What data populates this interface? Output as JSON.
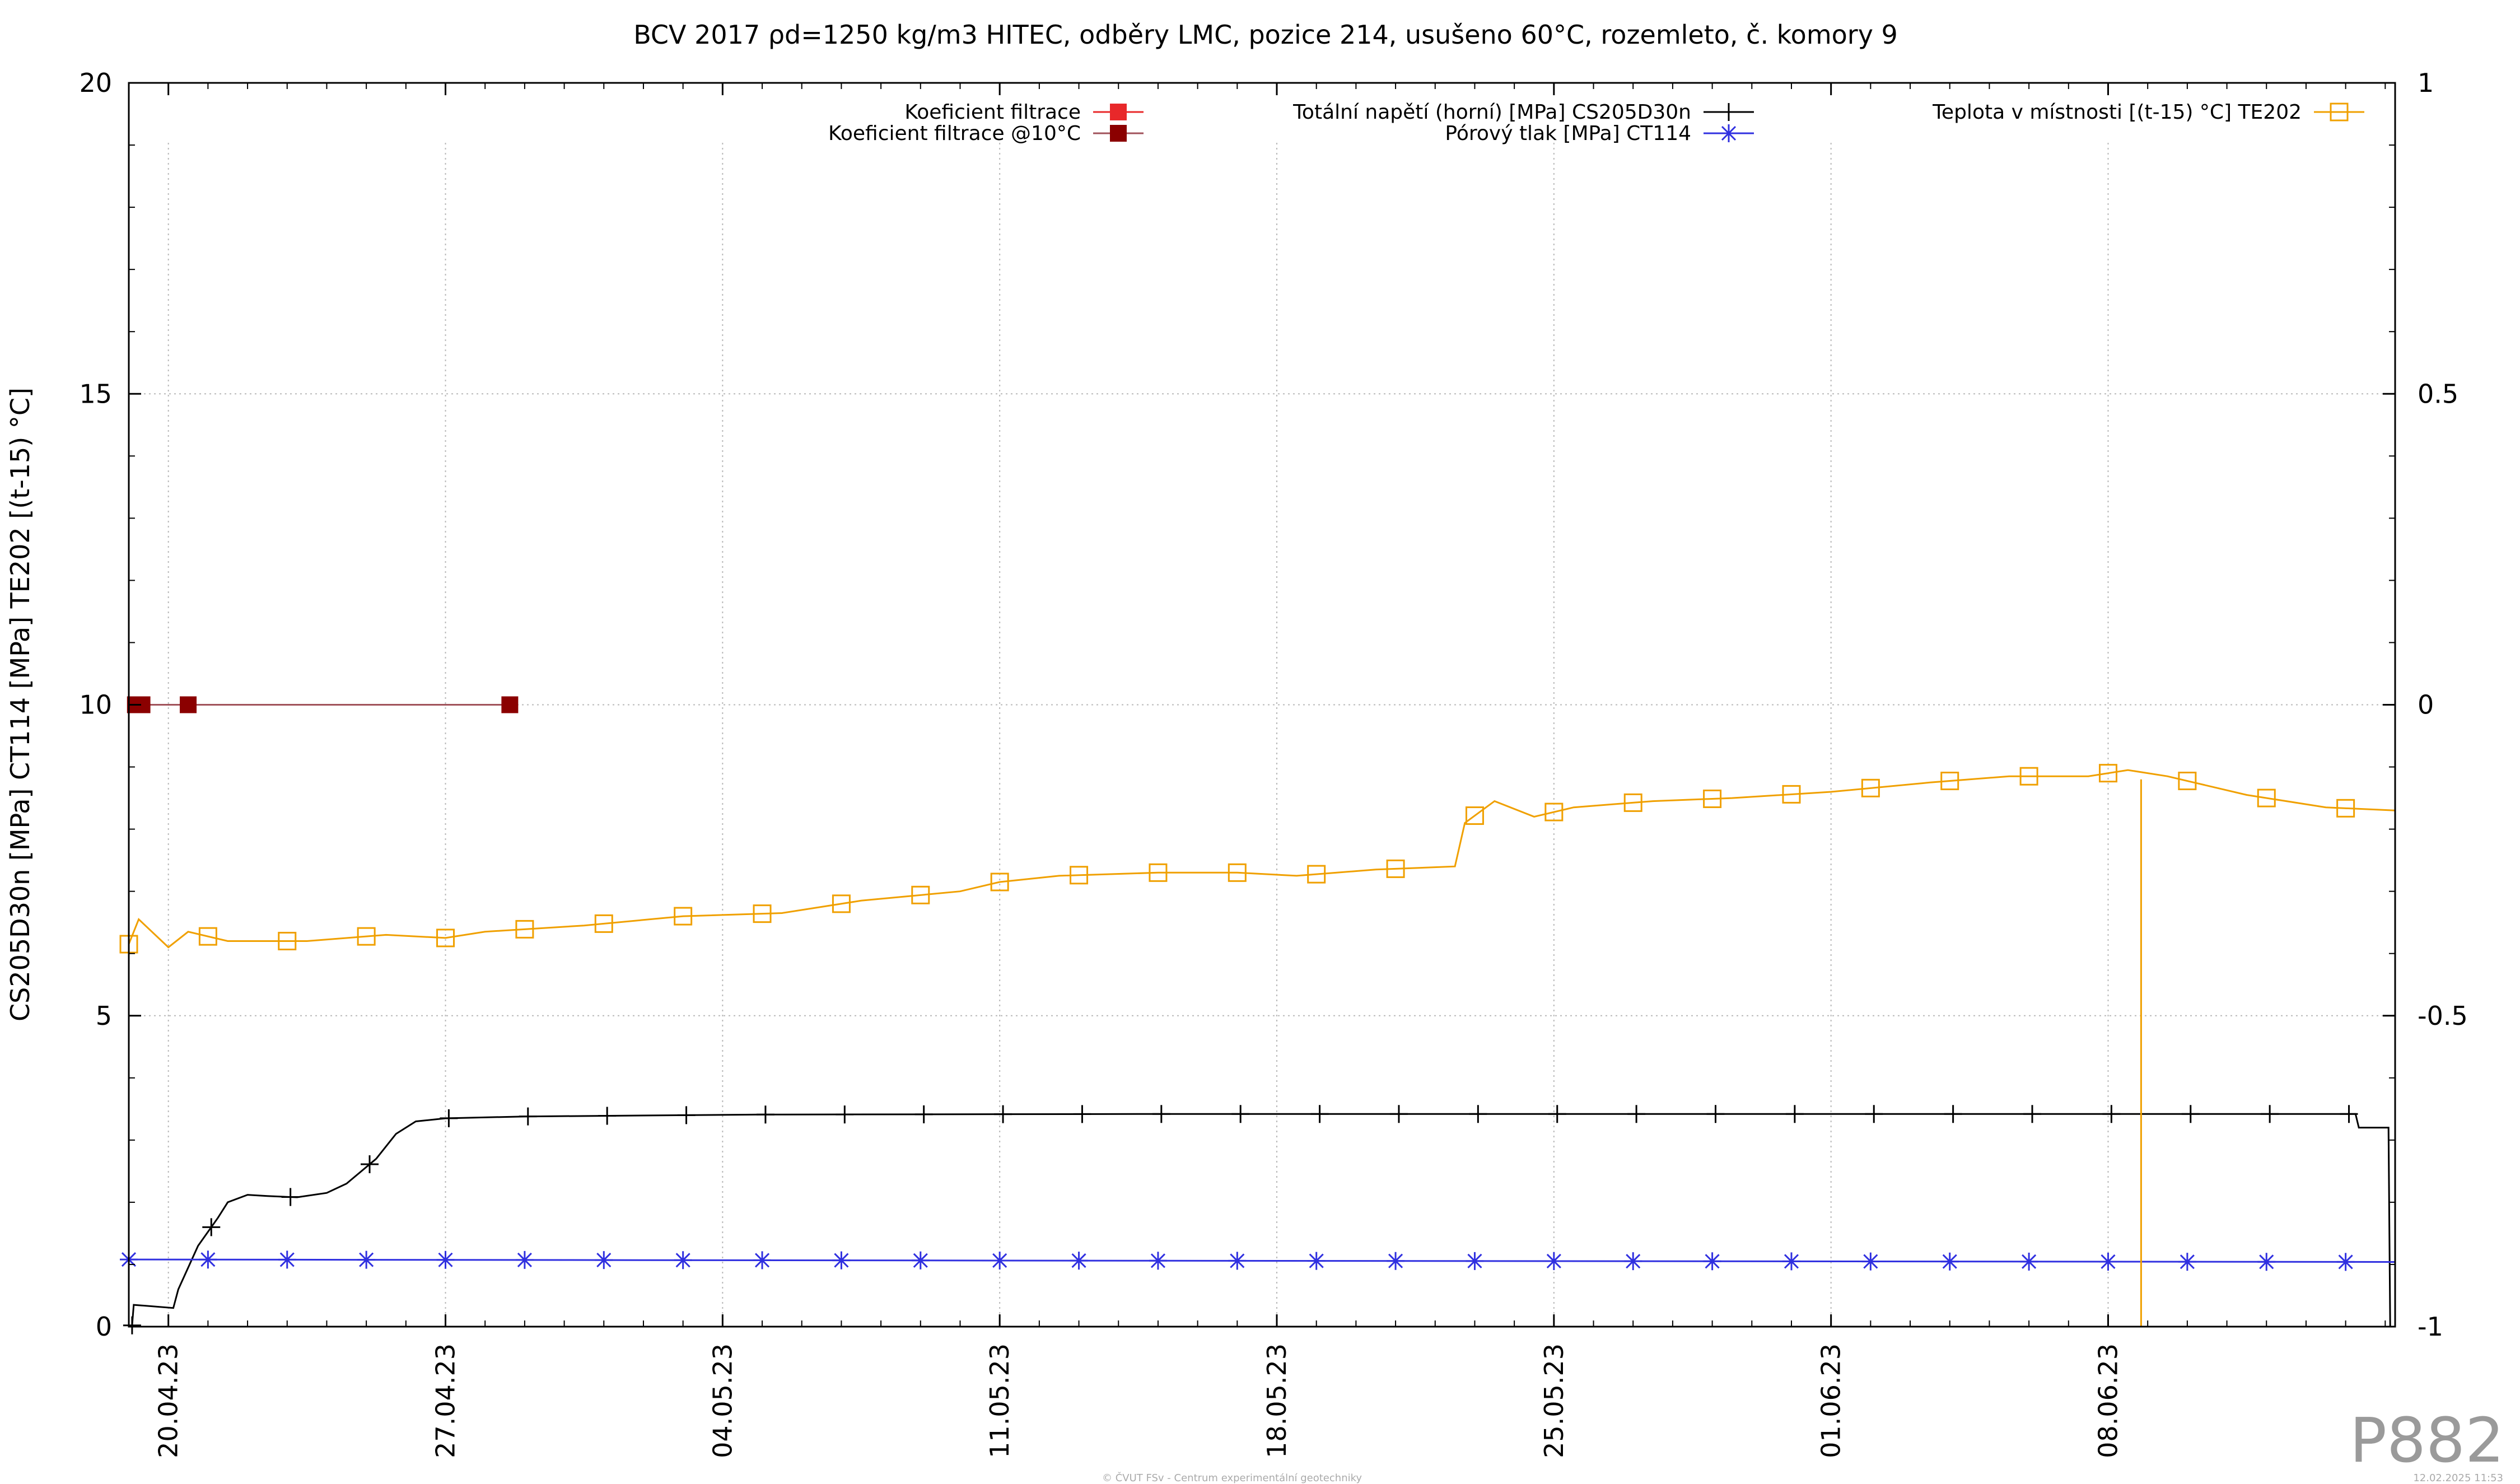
{
  "chart_data": {
    "type": "line",
    "title": "BCV 2017 ρd=1250 kg/m3 HITEC, odběry LMC, pozice 214, usušeno 60°C, rozemleto, č. komory 9",
    "ylabel": "CS205D30n [MPa] CT114 [MPa] TE202 [(t-15) °C]",
    "y2label": "",
    "ylim": [
      0,
      20
    ],
    "y2lim": [
      -1,
      1
    ],
    "y_ticks": [
      0,
      5,
      10,
      15,
      20
    ],
    "y_tick_labels": [
      "0",
      "5",
      "10",
      "15",
      "20"
    ],
    "y2_ticks": [
      -1,
      -0.5,
      0,
      0.5,
      1
    ],
    "y2_tick_labels": [
      "-1",
      "-0.5",
      "0",
      "0.5",
      "1"
    ],
    "x_axis": "date",
    "xlim": [
      "2023-04-19T00:00",
      "2023-06-15T06:00"
    ],
    "x_ticks": [
      "2023-04-20",
      "2023-04-27",
      "2023-05-04",
      "2023-05-11",
      "2023-05-18",
      "2023-05-25",
      "2023-06-01",
      "2023-06-08"
    ],
    "x_tick_labels": [
      "20.04.23",
      "27.04.23",
      "04.05.23",
      "11.05.23",
      "18.05.23",
      "25.05.23",
      "01.06.23",
      "08.06.23"
    ],
    "grid": true,
    "legend_placement": "top",
    "series": [
      {
        "name": "Koeficient filtrace",
        "color": "#e8282a",
        "marker": "filled-square",
        "axis": "y",
        "points": []
      },
      {
        "name": "Koeficient filtrace @10°C",
        "color": "#8b0000",
        "marker": "filled-square",
        "line_color": "#a0525a",
        "axis": "y",
        "points": [
          [
            "2023-04-19T04:00",
            10
          ],
          [
            "2023-04-19T08:00",
            10
          ],
          [
            "2023-04-20T12:00",
            10
          ],
          [
            "2023-04-28T15:00",
            10
          ]
        ]
      },
      {
        "name": "Totální napětí (horní) [MPa] CS205D30n",
        "color": "#000000",
        "marker": "plus",
        "axis": "y",
        "points": [
          [
            "2023-04-19T02:00",
            0.02
          ],
          [
            "2023-04-19T03:00",
            0.35
          ],
          [
            "2023-04-20T03:00",
            0.3
          ],
          [
            "2023-04-20T06:00",
            0.6
          ],
          [
            "2023-04-20T18:00",
            1.3
          ],
          [
            "2023-04-21T06:00",
            1.75
          ],
          [
            "2023-04-21T12:00",
            2.0
          ],
          [
            "2023-04-22T00:00",
            2.12
          ],
          [
            "2023-04-22T12:00",
            2.1
          ],
          [
            "2023-04-23T06:00",
            2.08
          ],
          [
            "2023-04-24T00:00",
            2.15
          ],
          [
            "2023-04-24T12:00",
            2.3
          ],
          [
            "2023-04-25T06:00",
            2.7
          ],
          [
            "2023-04-25T18:00",
            3.1
          ],
          [
            "2023-04-26T06:00",
            3.3
          ],
          [
            "2023-04-27T00:00",
            3.35
          ],
          [
            "2023-04-29T00:00",
            3.38
          ],
          [
            "2023-05-05T00:00",
            3.41
          ],
          [
            "2023-05-15T00:00",
            3.42
          ],
          [
            "2023-05-25T00:00",
            3.42
          ],
          [
            "2023-06-05T00:00",
            3.42
          ],
          [
            "2023-06-14T06:00",
            3.42
          ],
          [
            "2023-06-14T08:00",
            3.2
          ],
          [
            "2023-06-15T02:00",
            3.2
          ],
          [
            "2023-06-15T03:00",
            0.0
          ]
        ]
      },
      {
        "name": "Pórový tlak [MPa] CT114",
        "color": "#3030e0",
        "marker": "star",
        "axis": "y",
        "points": [
          [
            "2023-04-19T00:00",
            1.08
          ],
          [
            "2023-05-15T00:00",
            1.06
          ],
          [
            "2023-06-15T06:00",
            1.04
          ]
        ]
      },
      {
        "name": "Teplota v místnosti [(t-15) °C] TE202",
        "color": "#f0a000",
        "marker": "open-square",
        "axis": "y",
        "points": [
          [
            "2023-04-19T00:00",
            6.15
          ],
          [
            "2023-04-19T06:00",
            6.55
          ],
          [
            "2023-04-20T00:00",
            6.1
          ],
          [
            "2023-04-20T12:00",
            6.35
          ],
          [
            "2023-04-21T12:00",
            6.2
          ],
          [
            "2023-04-23T12:00",
            6.2
          ],
          [
            "2023-04-25T12:00",
            6.3
          ],
          [
            "2023-04-27T00:00",
            6.25
          ],
          [
            "2023-04-28T00:00",
            6.35
          ],
          [
            "2023-04-30T12:00",
            6.45
          ],
          [
            "2023-05-03T00:00",
            6.6
          ],
          [
            "2023-05-05T12:00",
            6.65
          ],
          [
            "2023-05-07T12:00",
            6.85
          ],
          [
            "2023-05-10T00:00",
            7.0
          ],
          [
            "2023-05-11T00:00",
            7.15
          ],
          [
            "2023-05-12T12:00",
            7.25
          ],
          [
            "2023-05-15T00:00",
            7.3
          ],
          [
            "2023-05-17T00:00",
            7.3
          ],
          [
            "2023-05-18T12:00",
            7.25
          ],
          [
            "2023-05-20T12:00",
            7.35
          ],
          [
            "2023-05-22T12:00",
            7.4
          ],
          [
            "2023-05-22T18:00",
            8.1
          ],
          [
            "2023-05-23T12:00",
            8.45
          ],
          [
            "2023-05-24T12:00",
            8.2
          ],
          [
            "2023-05-25T12:00",
            8.35
          ],
          [
            "2023-05-27T12:00",
            8.45
          ],
          [
            "2023-05-29T12:00",
            8.5
          ],
          [
            "2023-06-01T00:00",
            8.6
          ],
          [
            "2023-06-03T12:00",
            8.75
          ],
          [
            "2023-06-05T12:00",
            8.85
          ],
          [
            "2023-06-07T12:00",
            8.85
          ],
          [
            "2023-06-08T12:00",
            8.95
          ],
          [
            "2023-06-09T12:00",
            8.85
          ],
          [
            "2023-06-11T12:00",
            8.55
          ],
          [
            "2023-06-13T12:00",
            8.35
          ],
          [
            "2023-06-15T06:00",
            8.3
          ]
        ]
      }
    ],
    "annotations": [
      "P882"
    ],
    "footer_left": "© ČVUT FSv - Centrum experimentální geotechniky",
    "footer_right": "12.02.2025 11:53"
  }
}
